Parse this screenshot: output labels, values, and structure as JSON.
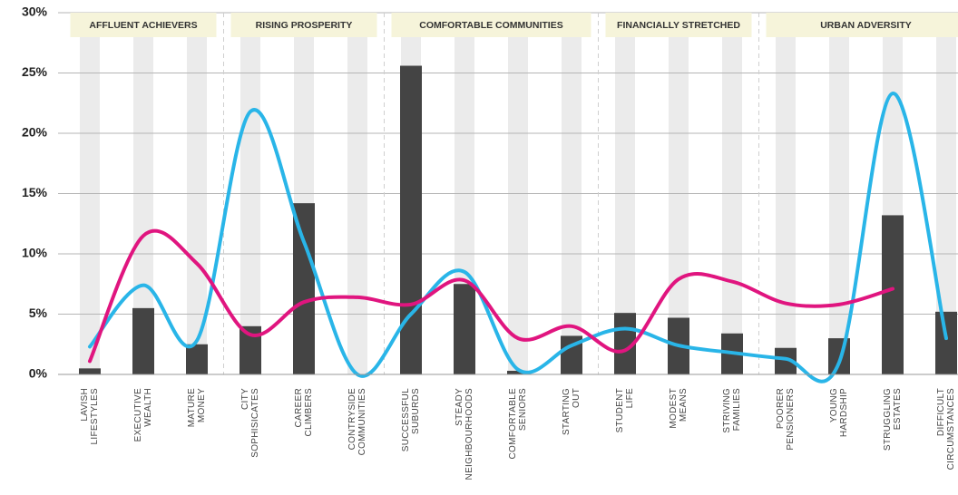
{
  "chart_data": {
    "type": "bar",
    "categories": [
      [
        "LAVISH",
        "LIFESTYLES"
      ],
      [
        "EXECUTIVE",
        "WEALTH"
      ],
      [
        "MATURE",
        "MONEY"
      ],
      [
        "CITY",
        "SOPHISICATES"
      ],
      [
        "CAREER",
        "CLIMBERS"
      ],
      [
        "CONTRYSIDE",
        "COMMUNITIES"
      ],
      [
        "SUCCESSFUL",
        "SUBURDS"
      ],
      [
        "STEADY",
        "NEIGHBOURHOODS"
      ],
      [
        "COMFORTABLE",
        "SENIORS"
      ],
      [
        "STARTING",
        "OUT"
      ],
      [
        "STUDENT",
        "LIFE"
      ],
      [
        "MODEST",
        "MEANS"
      ],
      [
        "STRIVING",
        "FAMILIES"
      ],
      [
        "POORER",
        "PENSIONERS"
      ],
      [
        "YOUNG",
        "HARDSHIP"
      ],
      [
        "STRUGGLING",
        "ESTATES"
      ],
      [
        "DIFFICULT",
        "CIRCUMSTANCES"
      ]
    ],
    "values": [
      0.5,
      5.5,
      2.5,
      4.0,
      14.2,
      0,
      25.6,
      7.5,
      0.3,
      3.2,
      5.1,
      4.7,
      3.4,
      2.2,
      3.0,
      13.2,
      5.2
    ],
    "color": "#444444",
    "lines": [
      {
        "color": "#29b5e8",
        "values": [
          2.3,
          7.4,
          2.8,
          21.8,
          11.0,
          0,
          5.0,
          8.5,
          0.4,
          2.4,
          3.8,
          2.4,
          1.8,
          1.3,
          1.0,
          23.3,
          3.0
        ]
      },
      {
        "color": "#e0157f",
        "values": [
          1.1,
          11.5,
          9.2,
          3.3,
          6.0,
          6.4,
          5.8,
          7.8,
          3.0,
          4.0,
          2.0,
          7.9,
          7.7,
          5.9,
          5.8,
          7.1,
          null
        ]
      }
    ],
    "groups": [
      {
        "label": "AFFLUENT ACHIEVERS",
        "span": 3
      },
      {
        "label": "RISING PROSPERITY",
        "span": 3
      },
      {
        "label": "COMFORTABLE COMMUNITIES",
        "span": 4
      },
      {
        "label": "FINANCIALLY STRETCHED",
        "span": 3
      },
      {
        "label": "URBAN ADVERSITY",
        "span": 4
      }
    ],
    "ylim": [
      0,
      30
    ],
    "yticks": [
      {
        "value": 0,
        "label": "0%"
      },
      {
        "value": 5,
        "label": "5%"
      },
      {
        "value": 10,
        "label": "10%"
      },
      {
        "value": 15,
        "label": "15%"
      },
      {
        "value": 20,
        "label": "20%"
      },
      {
        "value": 25,
        "label": "25%"
      },
      {
        "value": 30,
        "label": "30%"
      }
    ],
    "grid": true
  }
}
